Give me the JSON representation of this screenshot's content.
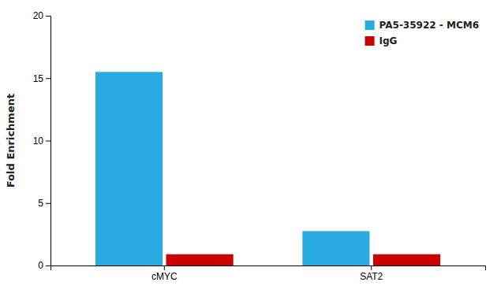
{
  "chart_data": {
    "type": "bar",
    "categories": [
      "cMYC",
      "SAT2"
    ],
    "series": [
      {
        "name": "PA5-35922 - MCM6",
        "color": "#29ABE2",
        "values": [
          15.5,
          2.75
        ]
      },
      {
        "name": "IgG",
        "color": "#CC0000",
        "values": [
          0.9,
          0.9
        ]
      }
    ],
    "ylabel": "Fold Enrichment",
    "ylim": [
      0,
      20
    ],
    "yticks": [
      0,
      5,
      10,
      15,
      20
    ],
    "grid": false,
    "legend": "upper right"
  }
}
